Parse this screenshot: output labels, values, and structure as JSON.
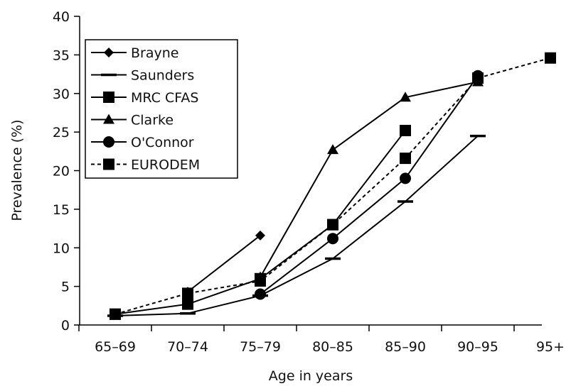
{
  "chart_data": {
    "type": "line",
    "xlabel": "Age in years",
    "ylabel": "Prevalence (%)",
    "categories": [
      "65–69",
      "70–74",
      "75–79",
      "80–85",
      "85–90",
      "90–95",
      "95+"
    ],
    "yticks": [
      "0",
      "5",
      "10",
      "15",
      "20",
      "25",
      "30",
      "35",
      "40"
    ],
    "ylim": [
      0,
      40
    ],
    "grid": false,
    "legend_position": "top-left",
    "line_color": "#000000",
    "series": [
      {
        "name": "Brayne",
        "marker": "diamond",
        "dash": false,
        "points": [
          [
            "75–79",
            11.6
          ]
        ]
      },
      {
        "name": "Saunders",
        "marker": "dash",
        "dash": false,
        "points": [
          [
            "65–69",
            1.2
          ],
          [
            "70–74",
            1.5
          ],
          [
            "75–79",
            3.8
          ],
          [
            "80–85",
            8.6
          ],
          [
            "85–90",
            16.0
          ],
          [
            "90–95",
            24.5
          ]
        ]
      },
      {
        "name": "MRC CFAS",
        "marker": "square",
        "dash": false,
        "points": [
          [
            "65–69",
            1.4
          ],
          [
            "70–74",
            2.7
          ],
          [
            "75–79",
            6.0
          ],
          [
            "80–85",
            13.0
          ],
          [
            "85–90",
            25.2
          ]
        ]
      },
      {
        "name": "Clarke",
        "marker": "triangle",
        "dash": false,
        "points": [
          [
            "75–79",
            6.2
          ],
          [
            "80–85",
            22.7
          ],
          [
            "85–90",
            29.5
          ],
          [
            "90–95",
            31.5
          ]
        ]
      },
      {
        "name": "O'Connor",
        "marker": "circle",
        "dash": false,
        "points": [
          [
            "75–79",
            4.0
          ],
          [
            "80–85",
            11.2
          ],
          [
            "85–90",
            19.0
          ],
          [
            "90–95",
            32.3
          ]
        ]
      },
      {
        "name": "EURODEM",
        "marker": "square",
        "dash": true,
        "points": [
          [
            "65–69",
            1.4
          ],
          [
            "70–74",
            4.1
          ],
          [
            "75–79",
            5.7
          ],
          [
            "80–85",
            13.0
          ],
          [
            "85–90",
            21.6
          ],
          [
            "90–95",
            32.0
          ],
          [
            "95+",
            34.6
          ]
        ]
      }
    ],
    "extra_segments": [
      {
        "series": "Brayne",
        "from": [
          "70–74",
          4.3
        ],
        "to": [
          "75–79",
          11.6
        ],
        "marker": "diamond"
      }
    ]
  }
}
